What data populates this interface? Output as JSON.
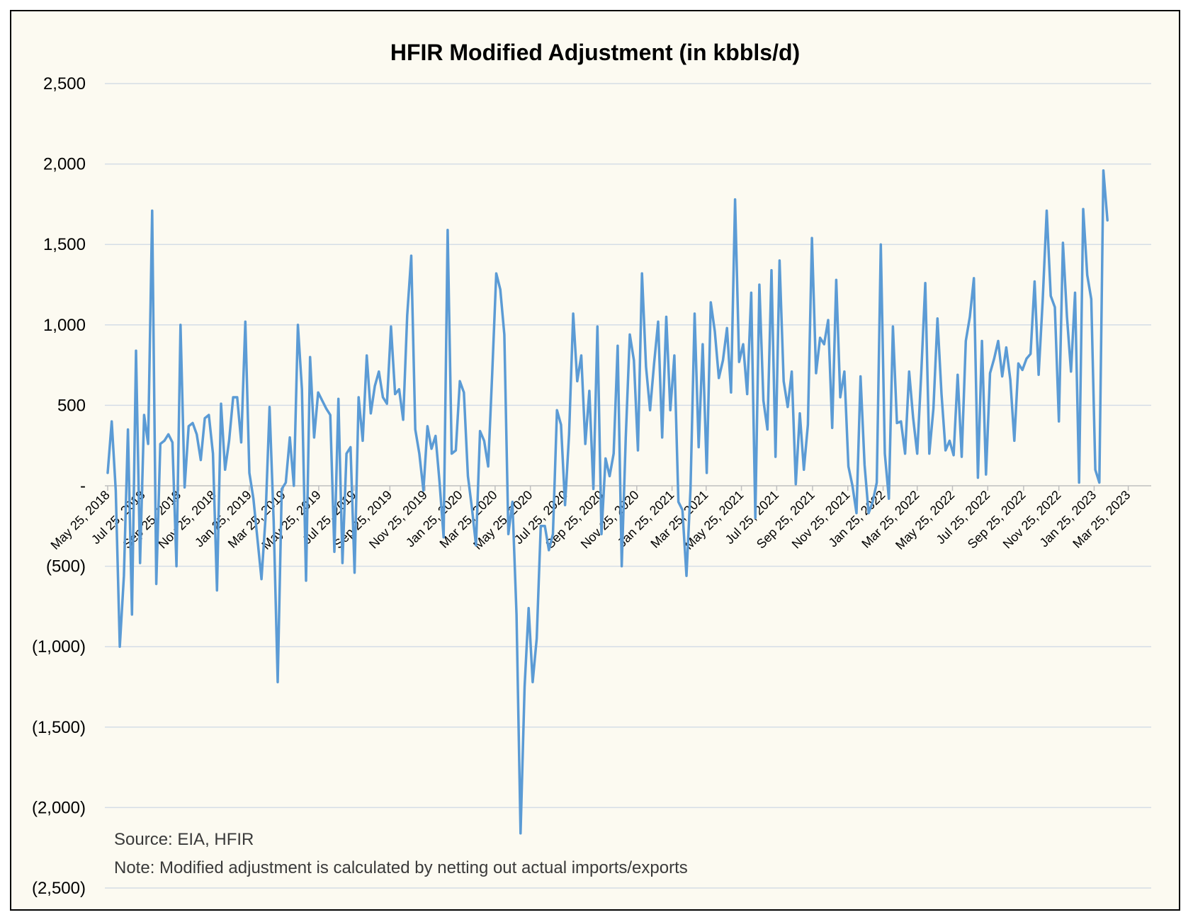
{
  "chart_data": {
    "type": "line",
    "title": "HFIR Modified Adjustment (in kbbls/d)",
    "xlabel": "",
    "ylabel": "",
    "ylim": [
      -2500,
      2500
    ],
    "yticks": [
      2500,
      2000,
      1500,
      1000,
      500,
      0,
      -500,
      -1000,
      -1500,
      -2000,
      -2500
    ],
    "ytick_labels": [
      "2,500",
      "2,000",
      "1,500",
      "1,000",
      "500",
      "-",
      "(500)",
      "(1,000)",
      "(1,500)",
      "(2,000)",
      "(2,500)"
    ],
    "xlim": [
      "2018-05-25",
      "2023-04-30"
    ],
    "xtick_labels": [
      "May 25, 2018",
      "Jul 25, 2018",
      "Sep 25, 2018",
      "Nov 25, 2018",
      "Jan 25, 2019",
      "Mar 25, 2019",
      "May 25, 2019",
      "Jul 25, 2019",
      "Sep 25, 2019",
      "Nov 25, 2019",
      "Jan 25, 2020",
      "Mar 25, 2020",
      "May 25, 2020",
      "Jul 25, 2020",
      "Sep 25, 2020",
      "Nov 25, 2020",
      "Jan 25, 2021",
      "Mar 25, 2021",
      "May 25, 2021",
      "Jul 25, 2021",
      "Sep 25, 2021",
      "Nov 25, 2021",
      "Jan 25, 2022",
      "Mar 25, 2022",
      "May 25, 2022",
      "Jul 25, 2022",
      "Sep 25, 2022",
      "Nov 25, 2022",
      "Jan 25, 2023",
      "Mar 25, 2023"
    ],
    "xtick_dates": [
      "2018-05-25",
      "2018-07-25",
      "2018-09-25",
      "2018-11-25",
      "2019-01-25",
      "2019-03-25",
      "2019-05-25",
      "2019-07-25",
      "2019-09-25",
      "2019-11-25",
      "2020-01-25",
      "2020-03-25",
      "2020-05-25",
      "2020-07-25",
      "2020-09-25",
      "2020-11-25",
      "2021-01-25",
      "2021-03-25",
      "2021-05-25",
      "2021-07-25",
      "2021-09-25",
      "2021-11-25",
      "2022-01-25",
      "2022-03-25",
      "2022-05-25",
      "2022-07-25",
      "2022-09-25",
      "2022-11-25",
      "2023-01-25",
      "2023-03-25"
    ],
    "grid": "horizontal",
    "legend": "none",
    "series": [
      {
        "color": "#5b9bd5",
        "points": [
          [
            "2018-05-25",
            80
          ],
          [
            "2018-06-01",
            400
          ],
          [
            "2018-06-08",
            -30
          ],
          [
            "2018-06-15",
            -1000
          ],
          [
            "2018-06-22",
            -560
          ],
          [
            "2018-06-29",
            350
          ],
          [
            "2018-07-06",
            -800
          ],
          [
            "2018-07-13",
            840
          ],
          [
            "2018-07-20",
            -480
          ],
          [
            "2018-07-27",
            440
          ],
          [
            "2018-08-03",
            260
          ],
          [
            "2018-08-10",
            1710
          ],
          [
            "2018-08-17",
            -610
          ],
          [
            "2018-08-24",
            260
          ],
          [
            "2018-08-31",
            280
          ],
          [
            "2018-09-07",
            320
          ],
          [
            "2018-09-14",
            270
          ],
          [
            "2018-09-21",
            -500
          ],
          [
            "2018-09-28",
            1000
          ],
          [
            "2018-10-05",
            -10
          ],
          [
            "2018-10-12",
            370
          ],
          [
            "2018-10-19",
            390
          ],
          [
            "2018-10-26",
            320
          ],
          [
            "2018-11-02",
            160
          ],
          [
            "2018-11-09",
            420
          ],
          [
            "2018-11-16",
            440
          ],
          [
            "2018-11-23",
            200
          ],
          [
            "2018-11-30",
            -650
          ],
          [
            "2018-12-07",
            510
          ],
          [
            "2018-12-14",
            100
          ],
          [
            "2018-12-21",
            280
          ],
          [
            "2018-12-28",
            550
          ],
          [
            "2019-01-04",
            550
          ],
          [
            "2019-01-11",
            270
          ],
          [
            "2019-01-18",
            1020
          ],
          [
            "2019-01-25",
            80
          ],
          [
            "2019-02-01",
            -80
          ],
          [
            "2019-02-08",
            -330
          ],
          [
            "2019-02-15",
            -580
          ],
          [
            "2019-02-22",
            -200
          ],
          [
            "2019-03-01",
            490
          ],
          [
            "2019-03-08",
            -220
          ],
          [
            "2019-03-15",
            -1220
          ],
          [
            "2019-03-22",
            -20
          ],
          [
            "2019-03-29",
            20
          ],
          [
            "2019-04-05",
            300
          ],
          [
            "2019-04-12",
            0
          ],
          [
            "2019-04-19",
            1000
          ],
          [
            "2019-04-26",
            600
          ],
          [
            "2019-05-03",
            -590
          ],
          [
            "2019-05-10",
            800
          ],
          [
            "2019-05-17",
            300
          ],
          [
            "2019-05-24",
            580
          ],
          [
            "2019-05-31",
            530
          ],
          [
            "2019-06-07",
            480
          ],
          [
            "2019-06-14",
            440
          ],
          [
            "2019-06-21",
            -410
          ],
          [
            "2019-06-28",
            540
          ],
          [
            "2019-07-05",
            -480
          ],
          [
            "2019-07-12",
            200
          ],
          [
            "2019-07-19",
            240
          ],
          [
            "2019-07-26",
            -540
          ],
          [
            "2019-08-02",
            550
          ],
          [
            "2019-08-09",
            280
          ],
          [
            "2019-08-16",
            810
          ],
          [
            "2019-08-23",
            450
          ],
          [
            "2019-08-30",
            620
          ],
          [
            "2019-09-06",
            710
          ],
          [
            "2019-09-13",
            550
          ],
          [
            "2019-09-20",
            510
          ],
          [
            "2019-09-27",
            990
          ],
          [
            "2019-10-04",
            570
          ],
          [
            "2019-10-11",
            600
          ],
          [
            "2019-10-18",
            410
          ],
          [
            "2019-10-25",
            1060
          ],
          [
            "2019-11-01",
            1430
          ],
          [
            "2019-11-08",
            350
          ],
          [
            "2019-11-15",
            200
          ],
          [
            "2019-11-22",
            -30
          ],
          [
            "2019-11-29",
            370
          ],
          [
            "2019-12-06",
            230
          ],
          [
            "2019-12-13",
            310
          ],
          [
            "2019-12-20",
            20
          ],
          [
            "2019-12-27",
            -320
          ],
          [
            "2020-01-03",
            1590
          ],
          [
            "2020-01-10",
            200
          ],
          [
            "2020-01-17",
            220
          ],
          [
            "2020-01-24",
            650
          ],
          [
            "2020-01-31",
            580
          ],
          [
            "2020-02-07",
            60
          ],
          [
            "2020-02-14",
            -140
          ],
          [
            "2020-02-21",
            -370
          ],
          [
            "2020-02-28",
            340
          ],
          [
            "2020-03-06",
            280
          ],
          [
            "2020-03-13",
            120
          ],
          [
            "2020-03-20",
            700
          ],
          [
            "2020-03-27",
            1320
          ],
          [
            "2020-04-03",
            1220
          ],
          [
            "2020-04-10",
            940
          ],
          [
            "2020-04-17",
            -300
          ],
          [
            "2020-04-24",
            -100
          ],
          [
            "2020-05-01",
            -800
          ],
          [
            "2020-05-08",
            -2160
          ],
          [
            "2020-05-15",
            -1250
          ],
          [
            "2020-05-22",
            -760
          ],
          [
            "2020-05-29",
            -1220
          ],
          [
            "2020-06-05",
            -950
          ],
          [
            "2020-06-12",
            -250
          ],
          [
            "2020-06-19",
            -250
          ],
          [
            "2020-06-26",
            -400
          ],
          [
            "2020-07-03",
            -300
          ],
          [
            "2020-07-10",
            470
          ],
          [
            "2020-07-17",
            380
          ],
          [
            "2020-07-24",
            -120
          ],
          [
            "2020-07-31",
            320
          ],
          [
            "2020-08-07",
            1070
          ],
          [
            "2020-08-14",
            650
          ],
          [
            "2020-08-21",
            810
          ],
          [
            "2020-08-28",
            260
          ],
          [
            "2020-09-04",
            590
          ],
          [
            "2020-09-11",
            -20
          ],
          [
            "2020-09-18",
            990
          ],
          [
            "2020-09-25",
            -300
          ],
          [
            "2020-10-02",
            170
          ],
          [
            "2020-10-09",
            60
          ],
          [
            "2020-10-16",
            200
          ],
          [
            "2020-10-23",
            870
          ],
          [
            "2020-10-30",
            -500
          ],
          [
            "2020-11-06",
            300
          ],
          [
            "2020-11-13",
            940
          ],
          [
            "2020-11-20",
            780
          ],
          [
            "2020-11-27",
            220
          ],
          [
            "2020-12-04",
            1320
          ],
          [
            "2020-12-11",
            740
          ],
          [
            "2020-12-18",
            470
          ],
          [
            "2020-12-25",
            760
          ],
          [
            "2021-01-01",
            1020
          ],
          [
            "2021-01-08",
            300
          ],
          [
            "2021-01-15",
            1050
          ],
          [
            "2021-01-22",
            470
          ],
          [
            "2021-01-29",
            810
          ],
          [
            "2021-02-05",
            -100
          ],
          [
            "2021-02-12",
            -150
          ],
          [
            "2021-02-19",
            -560
          ],
          [
            "2021-02-26",
            -20
          ],
          [
            "2021-03-05",
            1070
          ],
          [
            "2021-03-12",
            240
          ],
          [
            "2021-03-19",
            880
          ],
          [
            "2021-03-26",
            80
          ],
          [
            "2021-04-02",
            1140
          ],
          [
            "2021-04-09",
            960
          ],
          [
            "2021-04-16",
            670
          ],
          [
            "2021-04-23",
            780
          ],
          [
            "2021-04-30",
            980
          ],
          [
            "2021-05-07",
            580
          ],
          [
            "2021-05-14",
            1780
          ],
          [
            "2021-05-21",
            770
          ],
          [
            "2021-05-28",
            880
          ],
          [
            "2021-06-04",
            570
          ],
          [
            "2021-06-11",
            1200
          ],
          [
            "2021-06-18",
            -200
          ],
          [
            "2021-06-25",
            1250
          ],
          [
            "2021-07-02",
            530
          ],
          [
            "2021-07-09",
            350
          ],
          [
            "2021-07-16",
            1340
          ],
          [
            "2021-07-23",
            180
          ],
          [
            "2021-07-30",
            1400
          ],
          [
            "2021-08-06",
            650
          ],
          [
            "2021-08-13",
            490
          ],
          [
            "2021-08-20",
            710
          ],
          [
            "2021-08-27",
            10
          ],
          [
            "2021-09-03",
            450
          ],
          [
            "2021-09-10",
            100
          ],
          [
            "2021-09-17",
            380
          ],
          [
            "2021-09-24",
            1540
          ],
          [
            "2021-10-01",
            700
          ],
          [
            "2021-10-08",
            920
          ],
          [
            "2021-10-15",
            880
          ],
          [
            "2021-10-22",
            1030
          ],
          [
            "2021-10-29",
            360
          ],
          [
            "2021-11-05",
            1280
          ],
          [
            "2021-11-12",
            550
          ],
          [
            "2021-11-19",
            710
          ],
          [
            "2021-11-26",
            120
          ],
          [
            "2021-12-03",
            0
          ],
          [
            "2021-12-10",
            -170
          ],
          [
            "2021-12-17",
            680
          ],
          [
            "2021-12-24",
            130
          ],
          [
            "2021-12-31",
            -170
          ],
          [
            "2022-01-07",
            -100
          ],
          [
            "2022-01-14",
            20
          ],
          [
            "2022-01-21",
            1500
          ],
          [
            "2022-01-28",
            200
          ],
          [
            "2022-02-04",
            -80
          ],
          [
            "2022-02-11",
            990
          ],
          [
            "2022-02-18",
            390
          ],
          [
            "2022-02-25",
            400
          ],
          [
            "2022-03-04",
            200
          ],
          [
            "2022-03-11",
            710
          ],
          [
            "2022-03-18",
            420
          ],
          [
            "2022-03-25",
            200
          ],
          [
            "2022-04-01",
            700
          ],
          [
            "2022-04-08",
            1260
          ],
          [
            "2022-04-15",
            200
          ],
          [
            "2022-04-22",
            480
          ],
          [
            "2022-04-29",
            1040
          ],
          [
            "2022-05-06",
            570
          ],
          [
            "2022-05-13",
            220
          ],
          [
            "2022-05-20",
            280
          ],
          [
            "2022-05-27",
            190
          ],
          [
            "2022-06-03",
            690
          ],
          [
            "2022-06-10",
            180
          ],
          [
            "2022-06-17",
            900
          ],
          [
            "2022-06-24",
            1050
          ],
          [
            "2022-07-01",
            1290
          ],
          [
            "2022-07-08",
            50
          ],
          [
            "2022-07-15",
            900
          ],
          [
            "2022-07-22",
            70
          ],
          [
            "2022-07-29",
            700
          ],
          [
            "2022-08-05",
            790
          ],
          [
            "2022-08-12",
            900
          ],
          [
            "2022-08-19",
            680
          ],
          [
            "2022-08-26",
            860
          ],
          [
            "2022-09-02",
            660
          ],
          [
            "2022-09-09",
            280
          ],
          [
            "2022-09-16",
            760
          ],
          [
            "2022-09-23",
            720
          ],
          [
            "2022-09-30",
            790
          ],
          [
            "2022-10-07",
            820
          ],
          [
            "2022-10-14",
            1270
          ],
          [
            "2022-10-21",
            690
          ],
          [
            "2022-10-28",
            1150
          ],
          [
            "2022-11-04",
            1710
          ],
          [
            "2022-11-11",
            1180
          ],
          [
            "2022-11-18",
            1110
          ],
          [
            "2022-11-25",
            400
          ],
          [
            "2022-12-02",
            1510
          ],
          [
            "2022-12-09",
            1050
          ],
          [
            "2022-12-16",
            710
          ],
          [
            "2022-12-23",
            1200
          ],
          [
            "2022-12-30",
            20
          ],
          [
            "2023-01-06",
            1720
          ],
          [
            "2023-01-13",
            1310
          ],
          [
            "2023-01-20",
            1160
          ],
          [
            "2023-01-27",
            100
          ],
          [
            "2023-02-03",
            20
          ],
          [
            "2023-02-10",
            1960
          ],
          [
            "2023-02-17",
            1650
          ]
        ]
      }
    ],
    "notes": [
      "Source: EIA, HFIR",
      "Note: Modified adjustment is calculated by netting out actual imports/exports"
    ]
  }
}
